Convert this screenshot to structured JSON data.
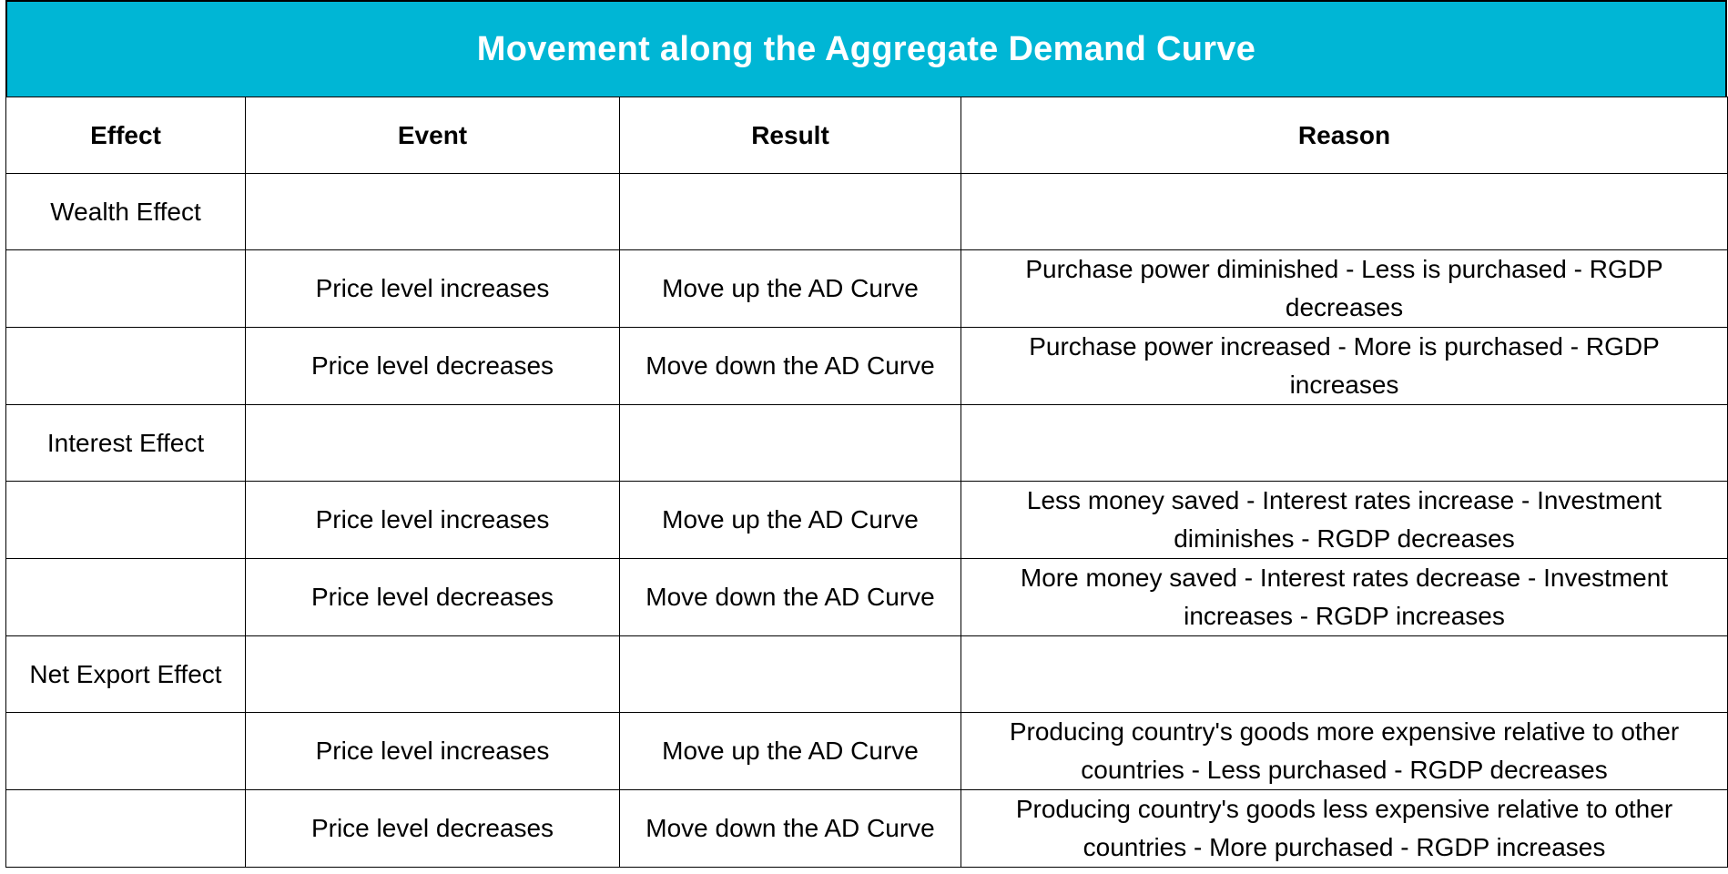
{
  "title": "Movement along the Aggregate Demand Curve",
  "colors": {
    "title_background": "#00b6d5",
    "title_text": "#ffffff",
    "border": "#000000"
  },
  "headers": {
    "effect": "Effect",
    "event": "Event",
    "result": "Result",
    "reason": "Reason"
  },
  "rows": [
    {
      "effect": "Wealth Effect",
      "event": "",
      "result": "",
      "reason": ""
    },
    {
      "effect": "",
      "event": "Price level increases",
      "result": "Move up the AD Curve",
      "reason": "Purchase power diminished - Less is purchased - RGDP decreases"
    },
    {
      "effect": "",
      "event": "Price level decreases",
      "result": "Move down the AD Curve",
      "reason": "Purchase power increased - More is purchased - RGDP increases"
    },
    {
      "effect": "Interest Effect",
      "event": "",
      "result": "",
      "reason": ""
    },
    {
      "effect": "",
      "event": "Price level increases",
      "result": "Move up the AD Curve",
      "reason": "Less money saved - Interest rates increase - Investment diminishes - RGDP decreases"
    },
    {
      "effect": "",
      "event": "Price level decreases",
      "result": "Move down the AD Curve",
      "reason": "More money saved - Interest rates decrease - Investment increases - RGDP increases"
    },
    {
      "effect": "Net Export Effect",
      "event": "",
      "result": "",
      "reason": ""
    },
    {
      "effect": "",
      "event": "Price level increases",
      "result": "Move up the AD Curve",
      "reason": "Producing country's goods more expensive relative to other countries - Less purchased - RGDP decreases"
    },
    {
      "effect": "",
      "event": "Price level decreases",
      "result": "Move down the AD Curve",
      "reason": "Producing country's goods less expensive relative to other countries - More purchased - RGDP increases"
    }
  ]
}
